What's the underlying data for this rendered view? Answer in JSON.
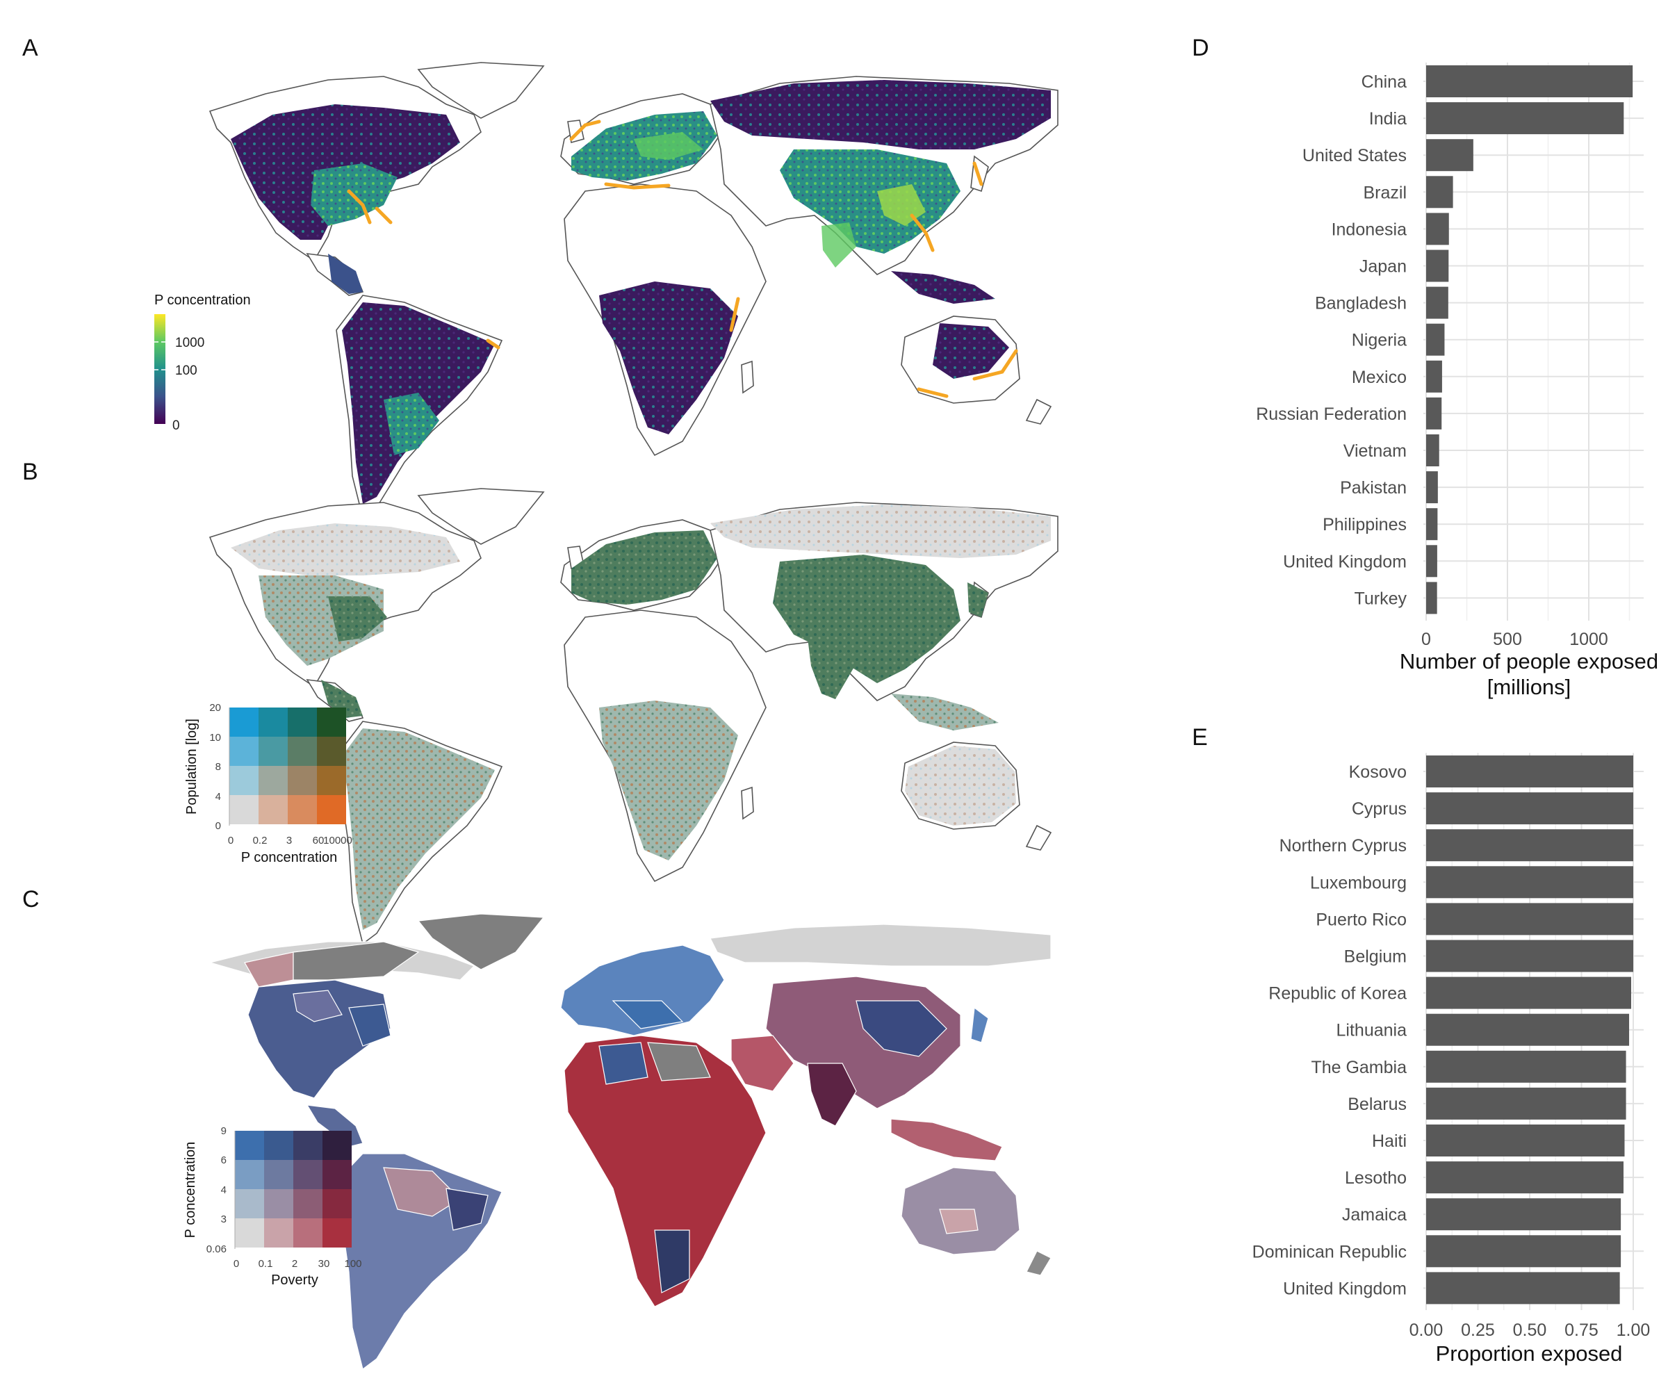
{
  "panels": {
    "a": "A",
    "b": "B",
    "c": "C",
    "d": "D",
    "e": "E"
  },
  "map_a": {
    "legend_title": "P concentration",
    "legend_ticks": [
      "1000",
      "100",
      "0"
    ],
    "palette": [
      "#440154",
      "#3b528b",
      "#21918c",
      "#5ec962",
      "#fde725"
    ],
    "hotspot_color": "#f5a623"
  },
  "map_b": {
    "legend_ylabel": "Population [log]",
    "legend_xlabel": "P concentration",
    "legend_yticks": [
      "0",
      "4",
      "8",
      "10",
      "20"
    ],
    "legend_xticks": [
      "0",
      "0.2",
      "3",
      "60",
      "10000"
    ],
    "grid_colors": [
      [
        "#1a9bd4",
        "#1a8aa0",
        "#176f6a",
        "#1d5226"
      ],
      [
        "#5cb3d9",
        "#4a9aa3",
        "#5b7d66",
        "#5a5a2c"
      ],
      [
        "#9ccadb",
        "#9da89e",
        "#9c8466",
        "#9b6a2a"
      ],
      [
        "#d9d9d9",
        "#d9b19c",
        "#d98b5e",
        "#e06a26"
      ]
    ]
  },
  "map_c": {
    "legend_ylabel": "P concentration",
    "legend_xlabel": "Poverty",
    "legend_yticks": [
      "0.06",
      "3",
      "4",
      "6",
      "9"
    ],
    "legend_xticks": [
      "0",
      "0.1",
      "2",
      "30",
      "100"
    ],
    "grid_colors": [
      [
        "#3d6fad",
        "#3a5a8f",
        "#3a3d66",
        "#2f1f3e"
      ],
      [
        "#7a9dc3",
        "#6d7aa0",
        "#634f73",
        "#5c2344"
      ],
      [
        "#a9bacb",
        "#9a8ea5",
        "#8c5d75",
        "#86293f"
      ],
      [
        "#d9d9d9",
        "#c9a3a9",
        "#b86f7c",
        "#a8303f"
      ]
    ]
  },
  "chart_data": [
    {
      "type": "bar",
      "orientation": "horizontal",
      "categories": [
        "China",
        "India",
        "United States",
        "Brazil",
        "Indonesia",
        "Japan",
        "Bangladesh",
        "Nigeria",
        "Mexico",
        "Russian Federation",
        "Vietnam",
        "Pakistan",
        "Philippines",
        "United Kingdom",
        "Turkey"
      ],
      "values": [
        1270,
        1215,
        290,
        165,
        140,
        138,
        136,
        113,
        98,
        95,
        80,
        72,
        70,
        68,
        67
      ],
      "xlabel": "Number of people exposed\n[millions]",
      "xlim": [
        0,
        1300
      ],
      "xticks": [
        0,
        500,
        1000
      ],
      "grid": true,
      "bar_color": "#595959"
    },
    {
      "type": "bar",
      "orientation": "horizontal",
      "categories": [
        "Kosovo",
        "Cyprus",
        "Northern Cyprus",
        "Luxembourg",
        "Puerto Rico",
        "Belgium",
        "Republic of Korea",
        "Lithuania",
        "The Gambia",
        "Belarus",
        "Haiti",
        "Lesotho",
        "Jamaica",
        "Dominican Republic",
        "United Kingdom"
      ],
      "values": [
        1.0,
        1.0,
        1.0,
        1.0,
        1.0,
        1.0,
        0.99,
        0.98,
        0.965,
        0.965,
        0.958,
        0.953,
        0.94,
        0.94,
        0.935
      ],
      "xlabel": "Proportion exposed",
      "xlim": [
        0,
        1.0
      ],
      "xticks": [
        "0.00",
        "0.25",
        "0.50",
        "0.75",
        "1.00"
      ],
      "grid": true,
      "bar_color": "#595959"
    }
  ]
}
